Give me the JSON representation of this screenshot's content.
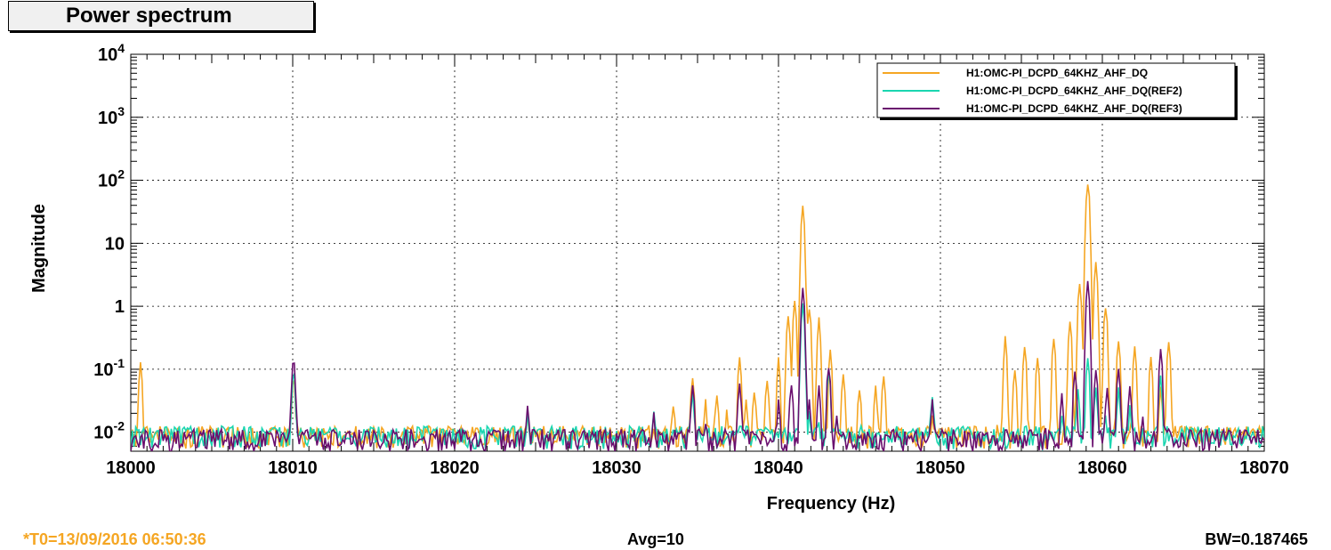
{
  "window": {
    "title": "Power spectrum"
  },
  "footer": {
    "t0": "*T0=13/09/2016 06:50:36",
    "avg": "Avg=10",
    "bw": "BW=0.187465"
  },
  "colors": {
    "orange": "#f5a623",
    "teal": "#1ad6b0",
    "purple": "#6a0f6e"
  },
  "chart_data": {
    "type": "line",
    "title": "",
    "xlabel": "Frequency (Hz)",
    "ylabel": "Magnitude",
    "xlim": [
      18000,
      18070
    ],
    "ylim": [
      0.005,
      10000
    ],
    "y_scale": "log",
    "grid": true,
    "legend_position": "top-right",
    "x_ticks": [
      "18000",
      "18010",
      "18020",
      "18030",
      "18040",
      "18050",
      "18060",
      "18070"
    ],
    "y_ticks": [
      {
        "value": 0.01,
        "base": "10",
        "exp": "-2"
      },
      {
        "value": 0.1,
        "base": "10",
        "exp": "-1"
      },
      {
        "value": 1,
        "base": "1",
        "exp": ""
      },
      {
        "value": 10,
        "base": "10",
        "exp": ""
      },
      {
        "value": 100,
        "base": "10",
        "exp": "2"
      },
      {
        "value": 1000,
        "base": "10",
        "exp": "3"
      },
      {
        "value": 10000,
        "base": "10",
        "exp": "4"
      }
    ],
    "series": [
      {
        "name": "H1:OMC-PI_DCPD_64KHZ_AHF_DQ",
        "color": "#f5a623",
        "baseline": 0.009,
        "peaks": [
          [
            18000.1,
            0.01
          ],
          [
            18000.6,
            0.12
          ],
          [
            18001.0,
            0.012
          ],
          [
            18009.9,
            0.01
          ],
          [
            18010.05,
            0.08
          ],
          [
            18010.3,
            0.011
          ],
          [
            18015.5,
            0.012
          ],
          [
            18024.5,
            0.018
          ],
          [
            18032.0,
            0.015
          ],
          [
            18033.5,
            0.03
          ],
          [
            18034.7,
            0.08
          ],
          [
            18035.5,
            0.03
          ],
          [
            18036.2,
            0.04
          ],
          [
            18036.8,
            0.02
          ],
          [
            18037.6,
            0.15
          ],
          [
            18038.0,
            0.03
          ],
          [
            18038.5,
            0.05
          ],
          [
            18039.3,
            0.07
          ],
          [
            18040.0,
            0.15
          ],
          [
            18040.6,
            0.8
          ],
          [
            18041.0,
            1.2
          ],
          [
            18041.5,
            35
          ],
          [
            18041.9,
            1.0
          ],
          [
            18042.5,
            0.6
          ],
          [
            18043.2,
            0.2
          ],
          [
            18044.0,
            0.08
          ],
          [
            18045.0,
            0.05
          ],
          [
            18046.0,
            0.05
          ],
          [
            18046.5,
            0.08
          ],
          [
            18047.0,
            0.012
          ],
          [
            18049.5,
            0.02
          ],
          [
            18053.5,
            0.012
          ],
          [
            18054.0,
            0.3
          ],
          [
            18054.6,
            0.1
          ],
          [
            18055.2,
            0.25
          ],
          [
            18056.0,
            0.15
          ],
          [
            18057.0,
            0.3
          ],
          [
            18058.0,
            0.6
          ],
          [
            18058.6,
            2.5
          ],
          [
            18059.1,
            100
          ],
          [
            18059.6,
            5
          ],
          [
            18060.2,
            1.0
          ],
          [
            18061.0,
            0.3
          ],
          [
            18062.0,
            0.25
          ],
          [
            18063.0,
            0.15
          ],
          [
            18063.6,
            0.05
          ],
          [
            18064.1,
            0.3
          ],
          [
            18064.5,
            0.012
          ]
        ]
      },
      {
        "name": "H1:OMC-PI_DCPD_64KHZ_AHF_DQ(REF2)",
        "color": "#1ad6b0",
        "baseline": 0.009,
        "peaks": [
          [
            18010.05,
            0.09
          ],
          [
            18010.4,
            0.01
          ],
          [
            18015.3,
            0.012
          ],
          [
            18024.5,
            0.02
          ],
          [
            18032.3,
            0.02
          ],
          [
            18034.7,
            0.04
          ],
          [
            18035.5,
            0.012
          ],
          [
            18036.5,
            0.006
          ],
          [
            18037.6,
            0.012
          ],
          [
            18038.5,
            0.006
          ],
          [
            18039.5,
            0.007
          ],
          [
            18041.0,
            0.006
          ],
          [
            18041.5,
            1.2
          ],
          [
            18041.9,
            0.02
          ],
          [
            18042.5,
            0.015
          ],
          [
            18043.1,
            0.1
          ],
          [
            18043.6,
            0.02
          ],
          [
            18044.5,
            0.01
          ],
          [
            18045.5,
            0.007
          ],
          [
            18049.5,
            0.035
          ],
          [
            18050.5,
            0.01
          ],
          [
            18053.5,
            0.006
          ],
          [
            18055.0,
            0.006
          ],
          [
            18056.5,
            0.01
          ],
          [
            18057.5,
            0.02
          ],
          [
            18058.5,
            0.05
          ],
          [
            18059.1,
            0.15
          ],
          [
            18059.6,
            0.05
          ],
          [
            18060.2,
            0.02
          ],
          [
            18061.0,
            0.05
          ],
          [
            18061.7,
            0.025
          ],
          [
            18062.5,
            0.01
          ],
          [
            18063.6,
            0.08
          ],
          [
            18064.2,
            0.01
          ]
        ]
      },
      {
        "name": "H1:OMC-PI_DCPD_64KHZ_AHF_DQ(REF3)",
        "color": "#6a0f6e",
        "baseline": 0.008,
        "peaks": [
          [
            18010.05,
            0.15
          ],
          [
            18010.3,
            0.01
          ],
          [
            18024.5,
            0.025
          ],
          [
            18032.3,
            0.018
          ],
          [
            18034.7,
            0.06
          ],
          [
            18035.5,
            0.015
          ],
          [
            18037.6,
            0.06
          ],
          [
            18038.0,
            0.008
          ],
          [
            18039.0,
            0.012
          ],
          [
            18040.0,
            0.03
          ],
          [
            18040.8,
            0.06
          ],
          [
            18041.5,
            2.0
          ],
          [
            18041.9,
            0.03
          ],
          [
            18042.5,
            0.05
          ],
          [
            18043.1,
            0.12
          ],
          [
            18043.6,
            0.02
          ],
          [
            18049.5,
            0.03
          ],
          [
            18056.5,
            0.012
          ],
          [
            18057.5,
            0.04
          ],
          [
            18058.3,
            0.1
          ],
          [
            18059.1,
            2.5
          ],
          [
            18059.6,
            0.1
          ],
          [
            18060.3,
            0.05
          ],
          [
            18061.0,
            0.1
          ],
          [
            18061.7,
            0.05
          ],
          [
            18062.5,
            0.02
          ],
          [
            18063.6,
            0.2
          ],
          [
            18064.1,
            0.01
          ]
        ]
      }
    ]
  }
}
